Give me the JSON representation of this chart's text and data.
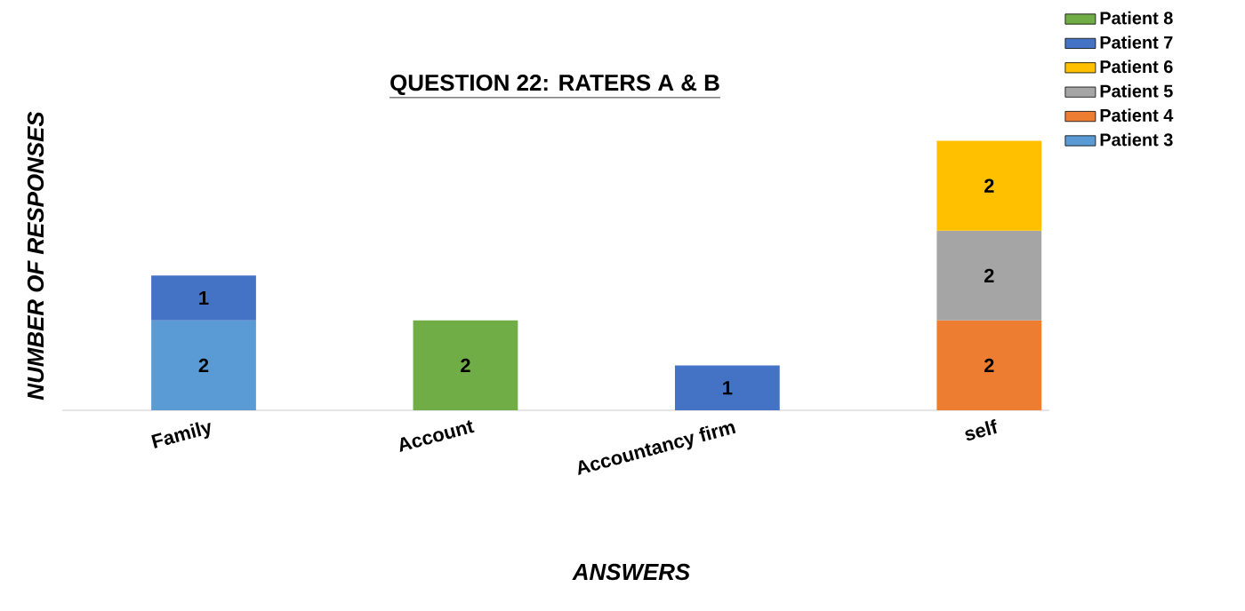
{
  "chart_data": {
    "type": "bar",
    "title": "QUESTION 22: RATERS A & B",
    "xlabel": "ANSWERS",
    "ylabel": "NUMBER OF RESPONSES",
    "categories": [
      "Family",
      "Account",
      "Accountancy firm",
      "self"
    ],
    "stacked": true,
    "data_labels": true,
    "legend": "top right",
    "tick_labels": "x",
    "series": [
      {
        "name": "Patient 3",
        "color": "#5b9bd5",
        "values": [
          2,
          null,
          null,
          null
        ]
      },
      {
        "name": "Patient 4",
        "color": "#ed7d31",
        "values": [
          null,
          null,
          null,
          2
        ]
      },
      {
        "name": "Patient 5",
        "color": "#a5a5a5",
        "values": [
          null,
          null,
          null,
          2
        ]
      },
      {
        "name": "Patient 6",
        "color": "#ffc000",
        "values": [
          null,
          null,
          null,
          2
        ]
      },
      {
        "name": "Patient 7",
        "color": "#4472c4",
        "values": [
          1,
          null,
          1,
          null
        ]
      },
      {
        "name": "Patient 8",
        "color": "#70ad47",
        "values": [
          null,
          2,
          null,
          null
        ]
      }
    ]
  }
}
